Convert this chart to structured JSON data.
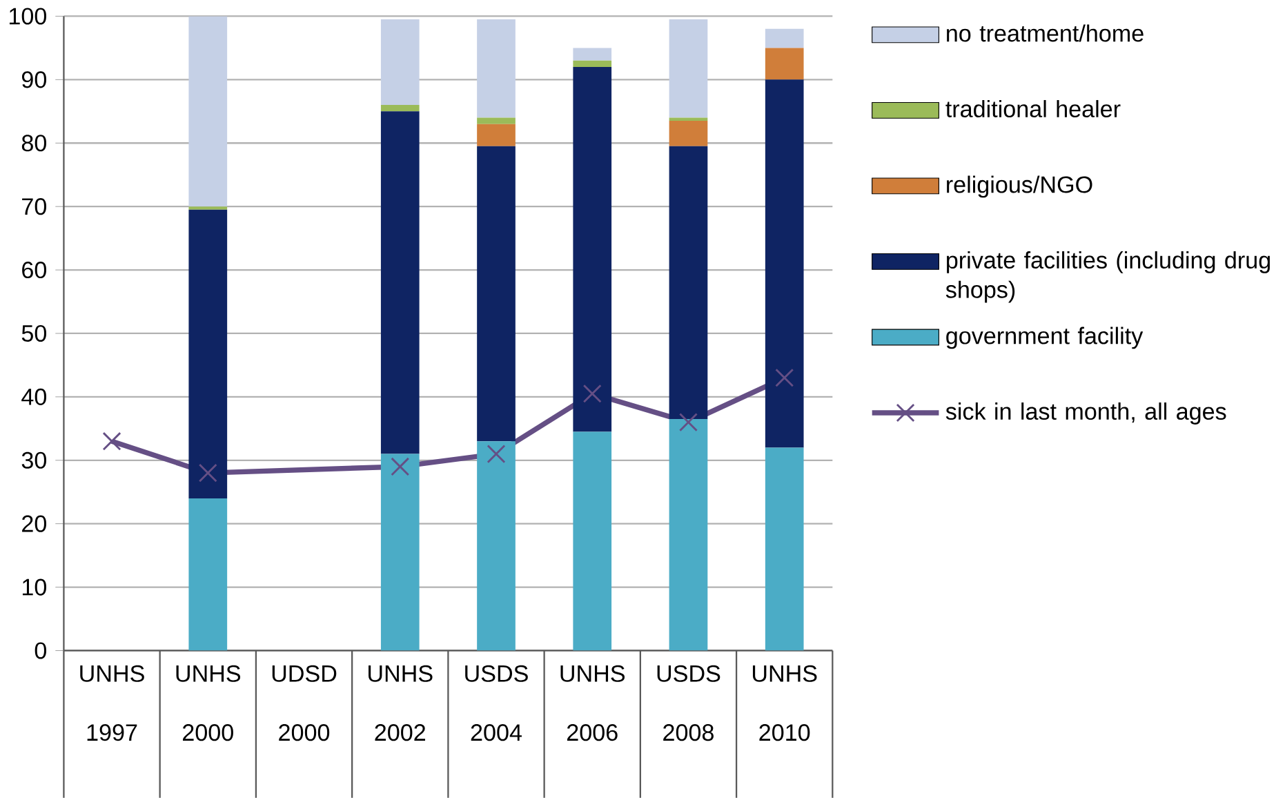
{
  "chart_data": {
    "type": "bar",
    "stacked": true,
    "categories": [
      "UNHS 1997",
      "UNHS 2000",
      "UDSD 2000",
      "UNHS 2002",
      "USDS 2004",
      "UNHS 2006",
      "USDS 2008",
      "UNHS 2010"
    ],
    "series": [
      {
        "name": "government facility",
        "color": "#4bacc6",
        "values": [
          null,
          24,
          null,
          31,
          33,
          34.5,
          36.5,
          32
        ]
      },
      {
        "name": "private facilities (including drug shops)",
        "color": "#0f2463",
        "values": [
          null,
          45.5,
          null,
          54,
          46.5,
          57.5,
          43,
          58
        ]
      },
      {
        "name": "religious/NGO",
        "color": "#d07e3a",
        "values": [
          null,
          0,
          null,
          0,
          3.5,
          0,
          4,
          5
        ]
      },
      {
        "name": "traditional healer",
        "color": "#9bbb59",
        "values": [
          null,
          0.5,
          null,
          1,
          1,
          1,
          0.5,
          0
        ]
      },
      {
        "name": "no treatment/home",
        "color": "#c5d0e6",
        "values": [
          null,
          30,
          null,
          13.5,
          15.5,
          2,
          15.5,
          3
        ]
      },
      {
        "name": "sick in last month, all ages",
        "type": "line",
        "marker": "cross",
        "color": "#654f85",
        "values": [
          33,
          28,
          null,
          29,
          31,
          40.5,
          36,
          43
        ]
      }
    ],
    "ylim": [
      0,
      100
    ],
    "yticks": [
      0,
      10,
      20,
      30,
      40,
      50,
      60,
      70,
      80,
      90,
      100
    ],
    "grid": "y",
    "legend": "right"
  }
}
